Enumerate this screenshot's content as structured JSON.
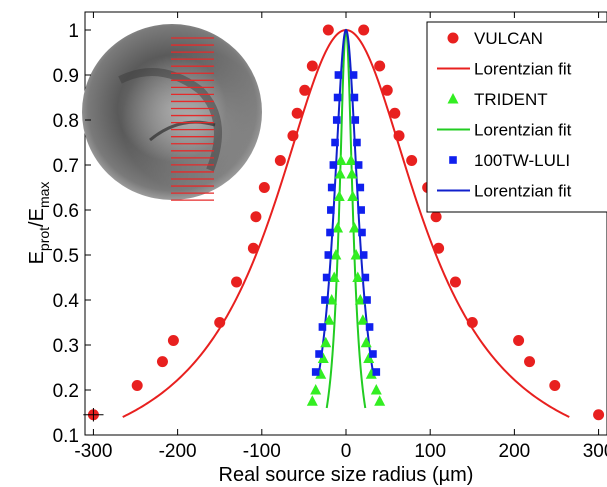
{
  "chart_data": {
    "type": "scatter",
    "xlabel": "Real source size radius (µm)",
    "ylabel_main": "E",
    "ylabel_sub1": "prot",
    "ylabel_mid": "/E",
    "ylabel_sub2": "max",
    "xlim": [
      -310,
      310
    ],
    "ylim": [
      0.1,
      1.04
    ],
    "x_ticks": [
      -300,
      -200,
      -100,
      0,
      100,
      200,
      300
    ],
    "y_ticks": [
      0.1,
      0.2,
      0.3,
      0.4,
      0.5,
      0.6,
      0.7,
      0.8,
      0.9,
      1
    ],
    "grid": false,
    "legend_position": "top-right",
    "inset": "grayscale beam-profile image with red horizontal line markers (top-left)",
    "series": [
      {
        "name": "VULCAN",
        "marker": "circle",
        "color": "#e8201f",
        "points": [
          [
            -300,
            0.145
          ],
          [
            -248,
            0.21
          ],
          [
            -218,
            0.263
          ],
          [
            -205,
            0.31
          ],
          [
            -150,
            0.35
          ],
          [
            -130,
            0.44
          ],
          [
            -110,
            0.515
          ],
          [
            -107,
            0.585
          ],
          [
            -97,
            0.65
          ],
          [
            -78,
            0.71
          ],
          [
            -63,
            0.765
          ],
          [
            -58,
            0.815
          ],
          [
            -49,
            0.866
          ],
          [
            -40,
            0.92
          ],
          [
            -21,
            1.0
          ],
          [
            21,
            1.0
          ],
          [
            40,
            0.92
          ],
          [
            49,
            0.866
          ],
          [
            58,
            0.815
          ],
          [
            63,
            0.765
          ],
          [
            78,
            0.71
          ],
          [
            97,
            0.65
          ],
          [
            107,
            0.585
          ],
          [
            110,
            0.515
          ],
          [
            130,
            0.44
          ],
          [
            150,
            0.35
          ],
          [
            205,
            0.31
          ],
          [
            218,
            0.263
          ],
          [
            248,
            0.21
          ],
          [
            300,
            0.145
          ]
        ]
      },
      {
        "name": "Lorentzian fit",
        "line_for": "VULCAN",
        "color": "#e8201f",
        "x0": 0,
        "gamma": 107,
        "y_range": [
          0.14,
          1.0
        ]
      },
      {
        "name": "TRIDENT",
        "marker": "triangle",
        "color": "#33ee22",
        "points": [
          [
            -40,
            0.175
          ],
          [
            -36,
            0.2
          ],
          [
            -30,
            0.235
          ],
          [
            -27,
            0.27
          ],
          [
            -24,
            0.305
          ],
          [
            -20,
            0.355
          ],
          [
            -17,
            0.4
          ],
          [
            -14,
            0.45
          ],
          [
            -12,
            0.5
          ],
          [
            -10,
            0.56
          ],
          [
            -8,
            0.63
          ],
          [
            -7,
            0.68
          ],
          [
            -6,
            0.71
          ],
          [
            6,
            0.71
          ],
          [
            7,
            0.68
          ],
          [
            8,
            0.63
          ],
          [
            10,
            0.56
          ],
          [
            12,
            0.5
          ],
          [
            14,
            0.45
          ],
          [
            17,
            0.4
          ],
          [
            20,
            0.355
          ],
          [
            24,
            0.305
          ],
          [
            27,
            0.27
          ],
          [
            30,
            0.235
          ],
          [
            36,
            0.2
          ],
          [
            40,
            0.175
          ]
        ]
      },
      {
        "name": "Lorentzian fit",
        "line_for": "TRIDENT",
        "color": "#22cc22",
        "x0": 0,
        "gamma": 10,
        "y_range": [
          0.16,
          1.0
        ]
      },
      {
        "name": "100TW-LULI",
        "marker": "square",
        "color": "#1020ee",
        "points": [
          [
            -36,
            0.24
          ],
          [
            -32,
            0.28
          ],
          [
            -28,
            0.34
          ],
          [
            -25,
            0.4
          ],
          [
            -23,
            0.45
          ],
          [
            -21,
            0.5
          ],
          [
            -19,
            0.55
          ],
          [
            -18,
            0.6
          ],
          [
            -17,
            0.65
          ],
          [
            -15,
            0.7
          ],
          [
            -13,
            0.75
          ],
          [
            -11,
            0.8
          ],
          [
            -10,
            0.85
          ],
          [
            -9,
            0.9
          ],
          [
            9,
            0.9
          ],
          [
            10,
            0.85
          ],
          [
            11,
            0.8
          ],
          [
            13,
            0.75
          ],
          [
            15,
            0.7
          ],
          [
            17,
            0.65
          ],
          [
            18,
            0.6
          ],
          [
            19,
            0.55
          ],
          [
            21,
            0.5
          ],
          [
            23,
            0.45
          ],
          [
            25,
            0.4
          ],
          [
            28,
            0.34
          ],
          [
            32,
            0.28
          ],
          [
            36,
            0.24
          ]
        ]
      },
      {
        "name": "Lorentzian fit",
        "line_for": "100TW-LULI",
        "color": "#1020cc",
        "x0": 0,
        "gamma": 18,
        "y_range": [
          0.24,
          1.0
        ]
      }
    ],
    "error_bar_point": {
      "series": "VULCAN",
      "x": -300,
      "y": 0.145,
      "xerr": 12,
      "yerr": 0.015
    }
  },
  "legend": {
    "items": [
      {
        "label": "VULCAN",
        "marker": "circle",
        "color": "#e8201f"
      },
      {
        "label": "Lorentzian fit",
        "marker": "line",
        "color": "#e8201f"
      },
      {
        "label": "TRIDENT",
        "marker": "triangle",
        "color": "#33ee22"
      },
      {
        "label": "Lorentzian fit",
        "marker": "line",
        "color": "#22cc22"
      },
      {
        "label": "100TW-LULI",
        "marker": "square",
        "color": "#1020ee"
      },
      {
        "label": "Lorentzian fit",
        "marker": "line",
        "color": "#1020cc"
      }
    ]
  }
}
